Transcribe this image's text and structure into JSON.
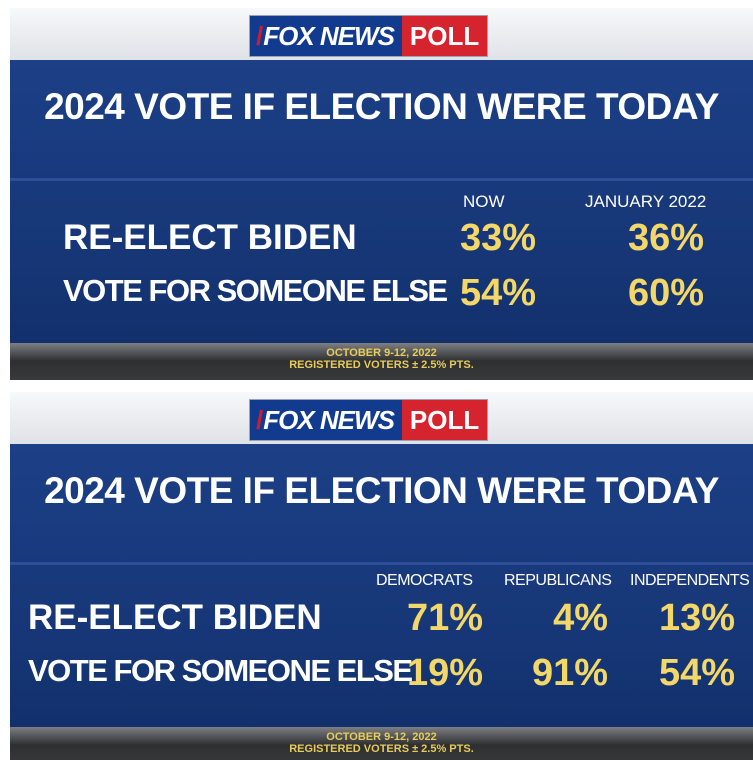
{
  "chart_data": [
    {
      "type": "table",
      "logo": {
        "brand": "FOX NEWS",
        "product": "POLL"
      },
      "title": "2024 VOTE IF ELECTION WERE TODAY",
      "columns": [
        "NOW",
        "JANUARY 2022"
      ],
      "rows": [
        {
          "label": "RE-ELECT BIDEN",
          "values": [
            "33%",
            "36%"
          ]
        },
        {
          "label": "VOTE FOR SOMEONE ELSE",
          "values": [
            "54%",
            "60%"
          ]
        }
      ],
      "footer": {
        "line1": "OCTOBER 9-12, 2022",
        "line2": "REGISTERED VOTERS ± 2.5% PTS."
      }
    },
    {
      "type": "table",
      "logo": {
        "brand": "FOX NEWS",
        "product": "POLL"
      },
      "title": "2024 VOTE IF ELECTION WERE TODAY",
      "columns": [
        "DEMOCRATS",
        "REPUBLICANS",
        "INDEPENDENTS"
      ],
      "rows": [
        {
          "label": "RE-ELECT BIDEN",
          "values": [
            "71%",
            "4%",
            "13%"
          ]
        },
        {
          "label": "VOTE FOR SOMEONE ELSE",
          "values": [
            "19%",
            "91%",
            "54%"
          ]
        }
      ],
      "footer": {
        "line1": "OCTOBER 9-12, 2022",
        "line2": "REGISTERED VOTERS ± 2.5% PTS."
      }
    }
  ],
  "colors": {
    "board_blue": "#1a3b80",
    "value_yellow": "#f3d768",
    "logo_blue": "#123a8f",
    "logo_red": "#d5242d"
  }
}
